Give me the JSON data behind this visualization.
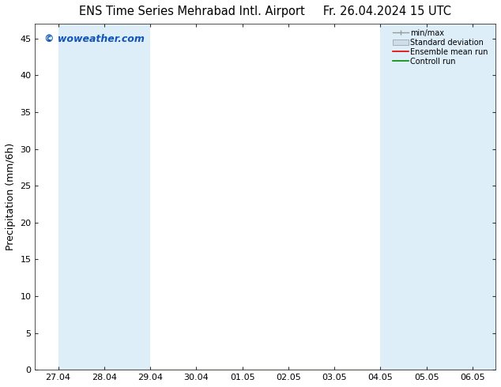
{
  "title": "ENS Time Series Mehrabad Intl. Airport",
  "title2": "Fr. 26.04.2024 15 UTC",
  "ylabel": "Precipitation (mm/6h)",
  "watermark": "© woweather.com",
  "ylim": [
    0,
    47
  ],
  "yticks": [
    0,
    5,
    10,
    15,
    20,
    25,
    30,
    35,
    40,
    45
  ],
  "x_labels": [
    "27.04",
    "28.04",
    "29.04",
    "30.04",
    "01.05",
    "02.05",
    "03.05",
    "04.05",
    "05.05",
    "06.05"
  ],
  "x_positions": [
    0,
    1,
    2,
    3,
    4,
    5,
    6,
    7,
    8,
    9
  ],
  "xlim": [
    -0.5,
    9.5
  ],
  "shaded_bands": [
    [
      0,
      1
    ],
    [
      1,
      2
    ],
    [
      7,
      8
    ],
    [
      8,
      9
    ],
    [
      9,
      9.5
    ]
  ],
  "band_color": "#ddeef8",
  "background_color": "#ffffff",
  "legend_labels": [
    "min/max",
    "Standard deviation",
    "Ensemble mean run",
    "Controll run"
  ],
  "legend_line_color": "#999999",
  "legend_std_color": "#ccddee",
  "ensemble_color": "#dd0000",
  "control_color": "#008800",
  "title_fontsize": 10.5,
  "axis_fontsize": 9,
  "tick_fontsize": 8,
  "watermark_color": "#1155bb",
  "watermark_fontsize": 9,
  "data_zeros": [
    0,
    0,
    0,
    0,
    0,
    0,
    0,
    0,
    0,
    0
  ]
}
